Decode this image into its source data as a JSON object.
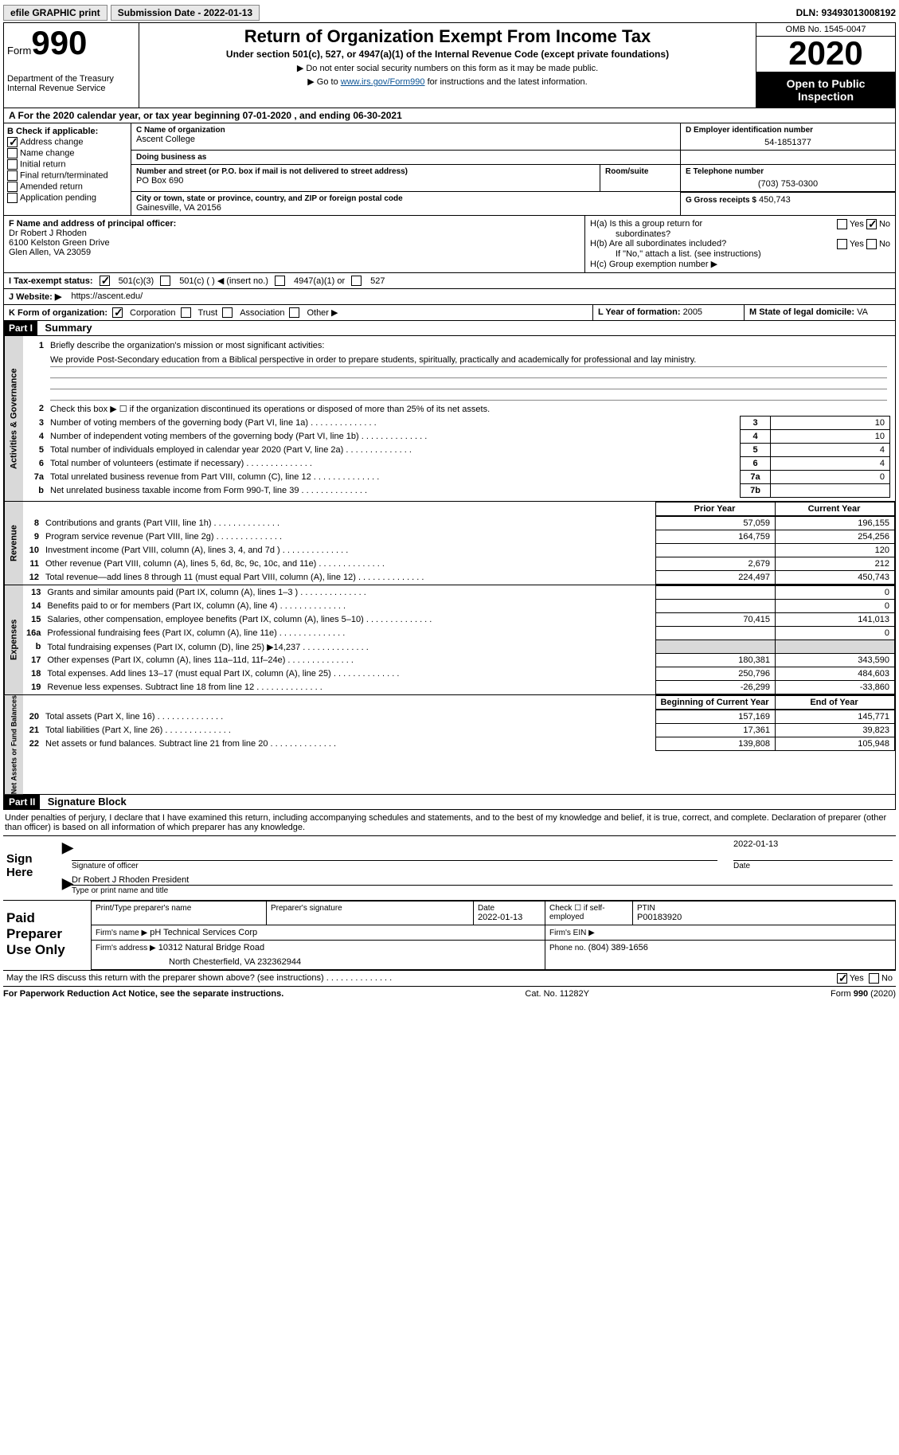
{
  "topbar": {
    "efile": "efile GRAPHIC print",
    "submission": "Submission Date - 2022-01-13",
    "dln": "DLN: 93493013008192"
  },
  "header": {
    "form": "Form",
    "num": "990",
    "dept": "Department of the Treasury\nInternal Revenue Service",
    "title": "Return of Organization Exempt From Income Tax",
    "sub": "Under section 501(c), 527, or 4947(a)(1) of the Internal Revenue Code (except private foundations)",
    "note1": "▶ Do not enter social security numbers on this form as it may be made public.",
    "note2_pre": "▶ Go to ",
    "note2_link": "www.irs.gov/Form990",
    "note2_post": " for instructions and the latest information.",
    "omb": "OMB No. 1545-0047",
    "year": "2020",
    "inspection": "Open to Public Inspection"
  },
  "lineA": "A For the 2020 calendar year, or tax year beginning 07-01-2020   , and ending 06-30-2021",
  "colB": {
    "label": "B Check if applicable:",
    "items": [
      "Address change",
      "Name change",
      "Initial return",
      "Final return/terminated",
      "Amended return",
      "Application pending"
    ],
    "checked": [
      true,
      false,
      false,
      false,
      false,
      false
    ]
  },
  "c": {
    "label": "C Name of organization",
    "name": "Ascent College",
    "dba_label": "Doing business as",
    "dba": "",
    "addr_label": "Number and street (or P.O. box if mail is not delivered to street address)",
    "room_label": "Room/suite",
    "addr": "PO Box 690",
    "city_label": "City or town, state or province, country, and ZIP or foreign postal code",
    "city": "Gainesville, VA  20156"
  },
  "d": {
    "label": "D Employer identification number",
    "val": "54-1851377"
  },
  "e": {
    "label": "E Telephone number",
    "val": "(703) 753-0300"
  },
  "g": {
    "label": "G Gross receipts $",
    "val": "450,743"
  },
  "f": {
    "label": "F Name and address of principal officer:",
    "name": "Dr Robert J Rhoden",
    "addr1": "6100 Kelston Green Drive",
    "addr2": "Glen Allen, VA  23059"
  },
  "h": {
    "a_label": "H(a)  Is this a group return for",
    "a_sub": "subordinates?",
    "b_label": "H(b)  Are all subordinates included?",
    "b_note": "If \"No,\" attach a list. (see instructions)",
    "c_label": "H(c)  Group exemption number ▶",
    "yes": "Yes",
    "no": "No"
  },
  "i": {
    "label": "I    Tax-exempt status:",
    "opts": [
      "501(c)(3)",
      "501(c) (  ) ◀ (insert no.)",
      "4947(a)(1) or",
      "527"
    ]
  },
  "j": {
    "label": "J   Website: ▶",
    "val": "https://ascent.edu/"
  },
  "k": {
    "label": "K Form of organization:",
    "opts": [
      "Corporation",
      "Trust",
      "Association",
      "Other ▶"
    ]
  },
  "l": {
    "label": "L Year of formation:",
    "val": "2005"
  },
  "m": {
    "label": "M State of legal domicile:",
    "val": "VA"
  },
  "part1": {
    "hdr": "Part I",
    "title": "Summary",
    "q1": "Briefly describe the organization's mission or most significant activities:",
    "mission": "We provide Post-Secondary education from a Biblical perspective in order to prepare students, spiritually, practically and academically for professional and lay ministry.",
    "q2": "Check this box ▶ ☐  if the organization discontinued its operations or disposed of more than 25% of its net assets.",
    "rows_gov": [
      {
        "n": "3",
        "t": "Number of voting members of the governing body (Part VI, line 1a)",
        "box": "3",
        "v": "10"
      },
      {
        "n": "4",
        "t": "Number of independent voting members of the governing body (Part VI, line 1b)",
        "box": "4",
        "v": "10"
      },
      {
        "n": "5",
        "t": "Total number of individuals employed in calendar year 2020 (Part V, line 2a)",
        "box": "5",
        "v": "4"
      },
      {
        "n": "6",
        "t": "Total number of volunteers (estimate if necessary)",
        "box": "6",
        "v": "4"
      },
      {
        "n": "7a",
        "t": "Total unrelated business revenue from Part VIII, column (C), line 12",
        "box": "7a",
        "v": "0"
      },
      {
        "n": "b",
        "t": "Net unrelated business taxable income from Form 990-T, line 39",
        "box": "7b",
        "v": ""
      }
    ],
    "col_hdr": {
      "prior": "Prior Year",
      "current": "Current Year"
    },
    "rev": [
      {
        "n": "8",
        "t": "Contributions and grants (Part VIII, line 1h)",
        "p": "57,059",
        "c": "196,155"
      },
      {
        "n": "9",
        "t": "Program service revenue (Part VIII, line 2g)",
        "p": "164,759",
        "c": "254,256"
      },
      {
        "n": "10",
        "t": "Investment income (Part VIII, column (A), lines 3, 4, and 7d )",
        "p": "",
        "c": "120"
      },
      {
        "n": "11",
        "t": "Other revenue (Part VIII, column (A), lines 5, 6d, 8c, 9c, 10c, and 11e)",
        "p": "2,679",
        "c": "212"
      },
      {
        "n": "12",
        "t": "Total revenue—add lines 8 through 11 (must equal Part VIII, column (A), line 12)",
        "p": "224,497",
        "c": "450,743"
      }
    ],
    "exp": [
      {
        "n": "13",
        "t": "Grants and similar amounts paid (Part IX, column (A), lines 1–3 )",
        "p": "",
        "c": "0"
      },
      {
        "n": "14",
        "t": "Benefits paid to or for members (Part IX, column (A), line 4)",
        "p": "",
        "c": "0"
      },
      {
        "n": "15",
        "t": "Salaries, other compensation, employee benefits (Part IX, column (A), lines 5–10)",
        "p": "70,415",
        "c": "141,013"
      },
      {
        "n": "16a",
        "t": "Professional fundraising fees (Part IX, column (A), line 11e)",
        "p": "",
        "c": "0"
      },
      {
        "n": "b",
        "t": "Total fundraising expenses (Part IX, column (D), line 25) ▶14,237",
        "p": "grey",
        "c": "grey"
      },
      {
        "n": "17",
        "t": "Other expenses (Part IX, column (A), lines 11a–11d, 11f–24e)",
        "p": "180,381",
        "c": "343,590"
      },
      {
        "n": "18",
        "t": "Total expenses. Add lines 13–17 (must equal Part IX, column (A), line 25)",
        "p": "250,796",
        "c": "484,603"
      },
      {
        "n": "19",
        "t": "Revenue less expenses. Subtract line 18 from line 12",
        "p": "-26,299",
        "c": "-33,860"
      }
    ],
    "net_hdr": {
      "begin": "Beginning of Current Year",
      "end": "End of Year"
    },
    "net": [
      {
        "n": "20",
        "t": "Total assets (Part X, line 16)",
        "p": "157,169",
        "c": "145,771"
      },
      {
        "n": "21",
        "t": "Total liabilities (Part X, line 26)",
        "p": "17,361",
        "c": "39,823"
      },
      {
        "n": "22",
        "t": "Net assets or fund balances. Subtract line 21 from line 20",
        "p": "139,808",
        "c": "105,948"
      }
    ],
    "side_gov": "Activities & Governance",
    "side_rev": "Revenue",
    "side_exp": "Expenses",
    "side_net": "Net Assets or Fund Balances"
  },
  "part2": {
    "hdr": "Part II",
    "title": "Signature Block",
    "penalties": "Under penalties of perjury, I declare that I have examined this return, including accompanying schedules and statements, and to the best of my knowledge and belief, it is true, correct, and complete. Declaration of preparer (other than officer) is based on all information of which preparer has any knowledge.",
    "sign_here": "Sign Here",
    "sig_officer": "Signature of officer",
    "date": "Date",
    "date_val": "2022-01-13",
    "printed": "Dr Robert J Rhoden  President",
    "printed_label": "Type or print name and title",
    "paid": "Paid Preparer Use Only",
    "prep_name_label": "Print/Type preparer's name",
    "prep_sig_label": "Preparer's signature",
    "prep_date_label": "Date",
    "prep_date": "2022-01-13",
    "self_emp": "Check ☐ if self-employed",
    "ptin_label": "PTIN",
    "ptin": "P00183920",
    "firm_name_label": "Firm's name    ▶",
    "firm_name": "pH Technical Services Corp",
    "firm_ein_label": "Firm's EIN ▶",
    "firm_addr_label": "Firm's address ▶",
    "firm_addr": "10312 Natural Bridge Road",
    "firm_addr2": "North Chesterfield, VA  232362944",
    "phone_label": "Phone no.",
    "phone": "(804) 389-1656",
    "may_discuss": "May the IRS discuss this return with the preparer shown above? (see instructions)",
    "yes": "Yes",
    "no": "No"
  },
  "footer": {
    "left": "For Paperwork Reduction Act Notice, see the separate instructions.",
    "mid": "Cat. No. 11282Y",
    "right": "Form 990 (2020)"
  }
}
